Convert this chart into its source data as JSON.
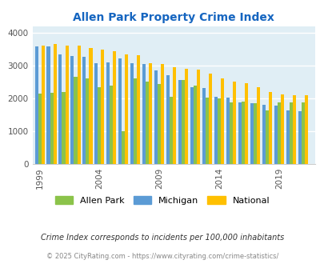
{
  "title": "Allen Park Property Crime Index",
  "years": [
    1999,
    2000,
    2001,
    2002,
    2003,
    2004,
    2005,
    2006,
    2007,
    2008,
    2009,
    2010,
    2011,
    2012,
    2013,
    2014,
    2015,
    2016,
    2017,
    2018,
    2019,
    2020,
    2021
  ],
  "allen_park": [
    2150,
    2180,
    2200,
    2650,
    2600,
    2350,
    2400,
    1000,
    2600,
    2500,
    2450,
    2040,
    2550,
    2380,
    2010,
    1990,
    1870,
    1900,
    1840,
    1640,
    1870,
    1880,
    1880
  ],
  "michigan": [
    3580,
    3580,
    3350,
    3300,
    3270,
    3070,
    3100,
    3230,
    3080,
    3050,
    2850,
    2700,
    2560,
    2350,
    2320,
    2040,
    2020,
    1870,
    1850,
    1810,
    1780,
    1640,
    1600
  ],
  "national": [
    3620,
    3650,
    3620,
    3610,
    3550,
    3500,
    3440,
    3350,
    3310,
    3080,
    3050,
    2940,
    2910,
    2880,
    2750,
    2600,
    2510,
    2460,
    2350,
    2190,
    2130,
    2100,
    2100
  ],
  "allen_park_color": "#8bc34a",
  "michigan_color": "#5b9bd5",
  "national_color": "#ffc000",
  "bg_color": "#e0eef5",
  "title_color": "#1565c0",
  "legend_labels": [
    "Allen Park",
    "Michigan",
    "National"
  ],
  "footer1": "Crime Index corresponds to incidents per 100,000 inhabitants",
  "footer2": "© 2025 CityRating.com - https://www.cityrating.com/crime-statistics/",
  "yticks": [
    0,
    1000,
    2000,
    3000,
    4000
  ],
  "xticks": [
    1999,
    2004,
    2009,
    2014,
    2019
  ]
}
